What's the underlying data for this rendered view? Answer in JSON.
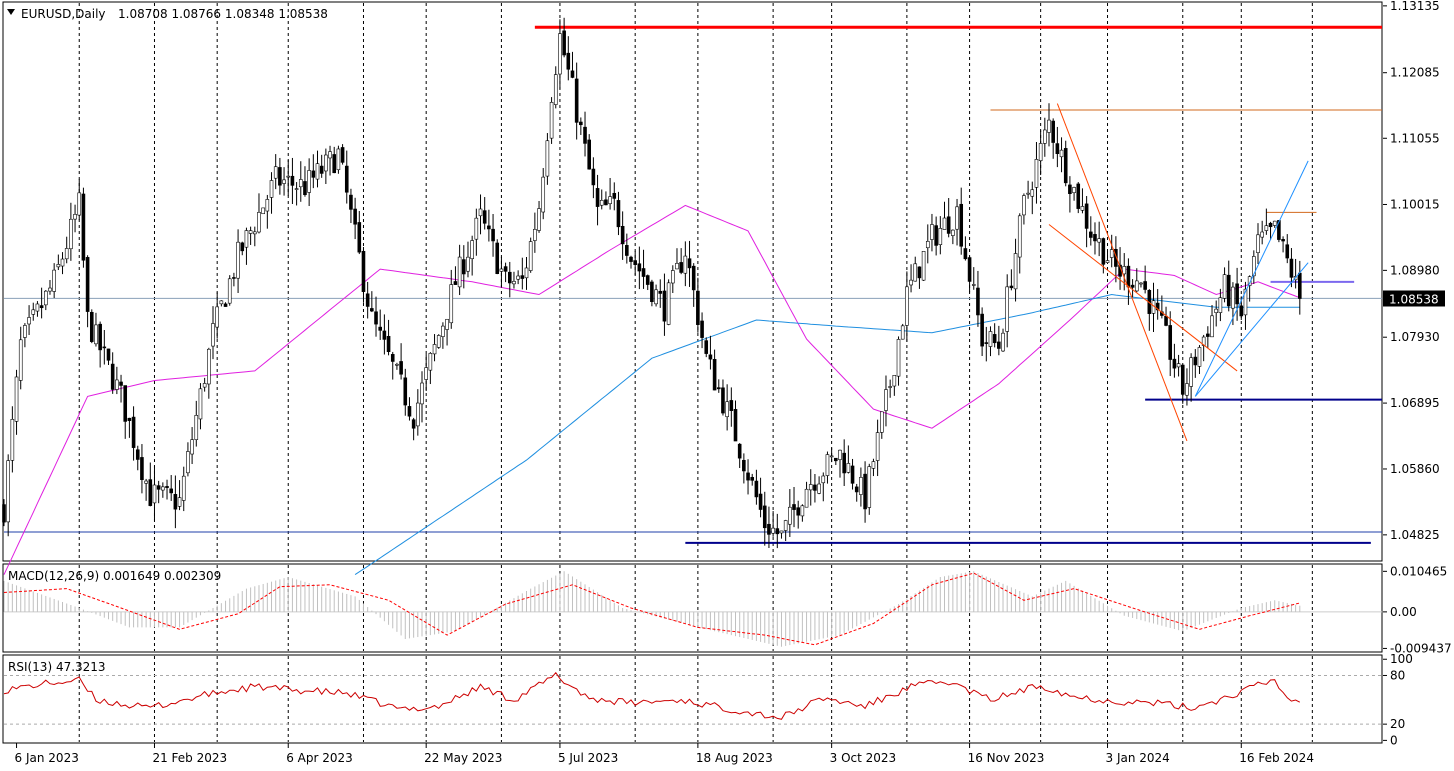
{
  "chart_data": {
    "type": "candlestick",
    "symbol": "EURUSD,Daily",
    "ohlc_readout": [
      "1.08708",
      "1.08766",
      "1.08348",
      "1.08538"
    ],
    "current_price": 1.08538,
    "current_price_label": "1.08538",
    "price_axis": {
      "ticks": [
        1.13135,
        1.12085,
        1.11055,
        1.10015,
        1.0898,
        1.0793,
        1.06895,
        1.0586,
        1.04825
      ],
      "tick_labels": [
        "1.13135",
        "1.12085",
        "1.11055",
        "1.10015",
        "1.08980",
        "1.07930",
        "1.06895",
        "1.05860",
        "1.04825"
      ],
      "range": [
        1.0443,
        1.1318
      ]
    },
    "x_axis": {
      "labels": [
        "6 Jan 2023",
        "21 Feb 2023",
        "6 Apr 2023",
        "22 May 2023",
        "5 Jul 2023",
        "18 Aug 2023",
        "3 Oct 2023",
        "16 Nov 2023",
        "3 Jan 2024",
        "16 Feb 2024"
      ],
      "label_bars": [
        3,
        36,
        68,
        101,
        133,
        166,
        198,
        231,
        264,
        296
      ],
      "grid_bars": [
        18,
        36,
        51,
        68,
        86,
        101,
        119,
        133,
        151,
        166,
        184,
        198,
        216,
        231,
        248,
        264,
        282,
        296,
        313
      ],
      "total_bars": 330
    },
    "key_points": [
      {
        "bar": 0,
        "price": 1.0525
      },
      {
        "bar": 4,
        "price": 1.078
      },
      {
        "bar": 12,
        "price": 1.088
      },
      {
        "bar": 18,
        "price": 1.1
      },
      {
        "bar": 20,
        "price": 1.082
      },
      {
        "bar": 28,
        "price": 1.07
      },
      {
        "bar": 35,
        "price": 1.0545
      },
      {
        "bar": 42,
        "price": 1.0535
      },
      {
        "bar": 50,
        "price": 1.08
      },
      {
        "bar": 56,
        "price": 1.092
      },
      {
        "bar": 65,
        "price": 1.104
      },
      {
        "bar": 72,
        "price": 1.103
      },
      {
        "bar": 80,
        "price": 1.108
      },
      {
        "bar": 88,
        "price": 1.082
      },
      {
        "bar": 98,
        "price": 1.067
      },
      {
        "bar": 108,
        "price": 1.088
      },
      {
        "bar": 114,
        "price": 1.098
      },
      {
        "bar": 120,
        "price": 1.088
      },
      {
        "bar": 124,
        "price": 1.088
      },
      {
        "bar": 128,
        "price": 1.1
      },
      {
        "bar": 131,
        "price": 1.118
      },
      {
        "bar": 133,
        "price": 1.1265
      },
      {
        "bar": 136,
        "price": 1.118
      },
      {
        "bar": 142,
        "price": 1.099
      },
      {
        "bar": 146,
        "price": 1.1
      },
      {
        "bar": 150,
        "price": 1.092
      },
      {
        "bar": 158,
        "price": 1.084
      },
      {
        "bar": 163,
        "price": 1.093
      },
      {
        "bar": 168,
        "price": 1.076
      },
      {
        "bar": 174,
        "price": 1.066
      },
      {
        "bar": 182,
        "price": 1.05
      },
      {
        "bar": 186,
        "price": 1.048
      },
      {
        "bar": 192,
        "price": 1.056
      },
      {
        "bar": 200,
        "price": 1.061
      },
      {
        "bar": 206,
        "price": 1.054
      },
      {
        "bar": 212,
        "price": 1.072
      },
      {
        "bar": 216,
        "price": 1.086
      },
      {
        "bar": 222,
        "price": 1.095
      },
      {
        "bar": 228,
        "price": 1.099
      },
      {
        "bar": 234,
        "price": 1.079
      },
      {
        "bar": 238,
        "price": 1.078
      },
      {
        "bar": 244,
        "price": 1.1
      },
      {
        "bar": 250,
        "price": 1.113
      },
      {
        "bar": 255,
        "price": 1.104
      },
      {
        "bar": 260,
        "price": 1.096
      },
      {
        "bar": 266,
        "price": 1.09
      },
      {
        "bar": 272,
        "price": 1.088
      },
      {
        "bar": 278,
        "price": 1.079
      },
      {
        "bar": 282,
        "price": 1.071
      },
      {
        "bar": 288,
        "price": 1.081
      },
      {
        "bar": 292,
        "price": 1.087
      },
      {
        "bar": 296,
        "price": 1.083
      },
      {
        "bar": 300,
        "price": 1.094
      },
      {
        "bar": 304,
        "price": 1.096
      },
      {
        "bar": 308,
        "price": 1.0895
      },
      {
        "bar": 310,
        "price": 1.0854
      }
    ],
    "ma_fast": [
      {
        "bar": 0,
        "price": 1.042
      },
      {
        "bar": 20,
        "price": 1.07
      },
      {
        "bar": 36,
        "price": 1.0725
      },
      {
        "bar": 60,
        "price": 1.074
      },
      {
        "bar": 90,
        "price": 1.09
      },
      {
        "bar": 112,
        "price": 1.088
      },
      {
        "bar": 128,
        "price": 1.086
      },
      {
        "bar": 145,
        "price": 1.093
      },
      {
        "bar": 163,
        "price": 1.1
      },
      {
        "bar": 178,
        "price": 1.096
      },
      {
        "bar": 192,
        "price": 1.079
      },
      {
        "bar": 208,
        "price": 1.068
      },
      {
        "bar": 222,
        "price": 1.065
      },
      {
        "bar": 238,
        "price": 1.072
      },
      {
        "bar": 255,
        "price": 1.082
      },
      {
        "bar": 268,
        "price": 1.09
      },
      {
        "bar": 280,
        "price": 1.089
      },
      {
        "bar": 290,
        "price": 1.086
      },
      {
        "bar": 300,
        "price": 1.088
      },
      {
        "bar": 310,
        "price": 1.0855
      }
    ],
    "ma_slow": [
      {
        "bar": 84,
        "price": 1.042
      },
      {
        "bar": 125,
        "price": 1.06
      },
      {
        "bar": 155,
        "price": 1.076
      },
      {
        "bar": 180,
        "price": 1.082
      },
      {
        "bar": 200,
        "price": 1.081
      },
      {
        "bar": 222,
        "price": 1.08
      },
      {
        "bar": 245,
        "price": 1.083
      },
      {
        "bar": 265,
        "price": 1.086
      },
      {
        "bar": 290,
        "price": 1.084
      },
      {
        "bar": 310,
        "price": 1.084
      }
    ],
    "horizontal_lines": [
      {
        "price": 1.128,
        "from_bar": 127,
        "to_bar": 345,
        "color": "#ff0000",
        "width": 3
      },
      {
        "price": 1.115,
        "from_bar": 236,
        "to_bar": 345,
        "color": "#d2691e",
        "width": 1
      },
      {
        "price": 1.0989,
        "from_bar": 302,
        "to_bar": 314,
        "color": "#d2691e",
        "width": 1
      },
      {
        "price": 1.088,
        "from_bar": 303,
        "to_bar": 323,
        "color": "#7b68ee",
        "width": 2
      },
      {
        "price": 1.0695,
        "from_bar": 273,
        "to_bar": 345,
        "color": "#00008b",
        "width": 2
      },
      {
        "price": 1.047,
        "from_bar": 163,
        "to_bar": 327,
        "color": "#00008b",
        "width": 2
      },
      {
        "price": 1.0487,
        "from_bar": 0,
        "to_bar": 345,
        "color": "#1f3fa8",
        "width": 1
      },
      {
        "price": 1.0854,
        "from_bar": 0,
        "to_bar": 345,
        "color": "#8aa0b8",
        "width": 1
      }
    ],
    "trend_lines": [
      {
        "from": [
          252,
          1.116
        ],
        "to": [
          283,
          1.063
        ],
        "color": "#ff4500"
      },
      {
        "from": [
          250,
          1.097
        ],
        "to": [
          295,
          1.074
        ],
        "color": "#ff4500"
      },
      {
        "from": [
          285,
          1.07
        ],
        "to": [
          312,
          1.107
        ],
        "color": "#1e90ff"
      },
      {
        "from": [
          285,
          1.07
        ],
        "to": [
          312,
          1.091
        ],
        "color": "#1e90ff"
      }
    ],
    "macd": {
      "label": "MACD(12,26,9) 0.001649 0.002309",
      "ticks": [
        0.010465,
        0.0,
        -0.009437
      ],
      "tick_labels": [
        "0.010465",
        "0.00",
        "-0.009437"
      ],
      "range": [
        -0.0101,
        0.0121
      ],
      "histogram_color": "#c0c0c0",
      "signal_color": "#ff0000",
      "signal": [
        {
          "bar": 0,
          "value": 0.005
        },
        {
          "bar": 15,
          "value": 0.006
        },
        {
          "bar": 28,
          "value": 0.001
        },
        {
          "bar": 42,
          "value": -0.0045
        },
        {
          "bar": 56,
          "value": -0.0005
        },
        {
          "bar": 66,
          "value": 0.0065
        },
        {
          "bar": 78,
          "value": 0.007
        },
        {
          "bar": 92,
          "value": 0.003
        },
        {
          "bar": 106,
          "value": -0.006
        },
        {
          "bar": 120,
          "value": 0.002
        },
        {
          "bar": 136,
          "value": 0.007
        },
        {
          "bar": 150,
          "value": 0.001
        },
        {
          "bar": 166,
          "value": -0.004
        },
        {
          "bar": 182,
          "value": -0.006
        },
        {
          "bar": 194,
          "value": -0.0085
        },
        {
          "bar": 208,
          "value": -0.003
        },
        {
          "bar": 222,
          "value": 0.007
        },
        {
          "bar": 232,
          "value": 0.01
        },
        {
          "bar": 244,
          "value": 0.003
        },
        {
          "bar": 256,
          "value": 0.006
        },
        {
          "bar": 270,
          "value": 0.001
        },
        {
          "bar": 286,
          "value": -0.0045
        },
        {
          "bar": 298,
          "value": -0.001
        },
        {
          "bar": 310,
          "value": 0.0023
        }
      ],
      "histogram": [
        {
          "bar": 0,
          "value": 0.008
        },
        {
          "bar": 18,
          "value": 0.001
        },
        {
          "bar": 30,
          "value": -0.004
        },
        {
          "bar": 42,
          "value": -0.004
        },
        {
          "bar": 58,
          "value": 0.006
        },
        {
          "bar": 68,
          "value": 0.009
        },
        {
          "bar": 84,
          "value": 0.004
        },
        {
          "bar": 96,
          "value": -0.007
        },
        {
          "bar": 108,
          "value": -0.005
        },
        {
          "bar": 126,
          "value": 0.006
        },
        {
          "bar": 134,
          "value": 0.0105
        },
        {
          "bar": 148,
          "value": 0.001
        },
        {
          "bar": 170,
          "value": -0.005
        },
        {
          "bar": 186,
          "value": -0.009
        },
        {
          "bar": 200,
          "value": -0.006
        },
        {
          "bar": 214,
          "value": 0.002
        },
        {
          "bar": 224,
          "value": 0.009
        },
        {
          "bar": 232,
          "value": 0.0105
        },
        {
          "bar": 246,
          "value": 0.004
        },
        {
          "bar": 254,
          "value": 0.008
        },
        {
          "bar": 268,
          "value": -0.001
        },
        {
          "bar": 282,
          "value": -0.005
        },
        {
          "bar": 296,
          "value": 0.001
        },
        {
          "bar": 304,
          "value": 0.003
        },
        {
          "bar": 310,
          "value": 0.0016
        }
      ]
    },
    "rsi": {
      "label": "RSI(13) 47.3213",
      "ticks": [
        100,
        80,
        20,
        0
      ],
      "tick_labels": [
        "100",
        "80",
        "20",
        "0"
      ],
      "levels": [
        80,
        20
      ],
      "range": [
        -2,
        104
      ],
      "color": "#cc0000",
      "values": [
        {
          "bar": 0,
          "value": 62
        },
        {
          "bar": 10,
          "value": 70
        },
        {
          "bar": 18,
          "value": 74
        },
        {
          "bar": 22,
          "value": 50
        },
        {
          "bar": 34,
          "value": 40
        },
        {
          "bar": 40,
          "value": 46
        },
        {
          "bar": 50,
          "value": 58
        },
        {
          "bar": 60,
          "value": 66
        },
        {
          "bar": 70,
          "value": 62
        },
        {
          "bar": 82,
          "value": 58
        },
        {
          "bar": 95,
          "value": 38
        },
        {
          "bar": 104,
          "value": 42
        },
        {
          "bar": 114,
          "value": 66
        },
        {
          "bar": 122,
          "value": 50
        },
        {
          "bar": 132,
          "value": 80
        },
        {
          "bar": 140,
          "value": 52
        },
        {
          "bar": 150,
          "value": 46
        },
        {
          "bar": 162,
          "value": 50
        },
        {
          "bar": 172,
          "value": 40
        },
        {
          "bar": 186,
          "value": 28
        },
        {
          "bar": 196,
          "value": 52
        },
        {
          "bar": 206,
          "value": 42
        },
        {
          "bar": 218,
          "value": 68
        },
        {
          "bar": 226,
          "value": 72
        },
        {
          "bar": 236,
          "value": 50
        },
        {
          "bar": 248,
          "value": 68
        },
        {
          "bar": 256,
          "value": 54
        },
        {
          "bar": 266,
          "value": 48
        },
        {
          "bar": 276,
          "value": 46
        },
        {
          "bar": 284,
          "value": 40
        },
        {
          "bar": 292,
          "value": 52
        },
        {
          "bar": 300,
          "value": 68
        },
        {
          "bar": 304,
          "value": 74
        },
        {
          "bar": 307,
          "value": 52
        },
        {
          "bar": 310,
          "value": 47
        }
      ]
    },
    "colors": {
      "bull_body": "#ffffff",
      "bear_body": "#000000",
      "wick": "#000000",
      "ma_fast": "#e020e0",
      "ma_slow": "#1f8fe0",
      "grid": "#000000",
      "price_badge_bg": "#000000",
      "price_badge_text": "#ffffff"
    }
  }
}
